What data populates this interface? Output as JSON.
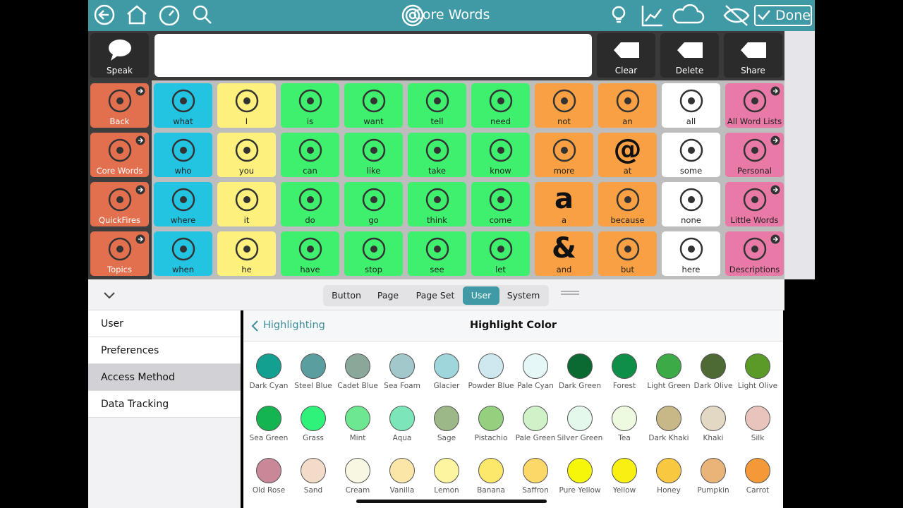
{
  "top_bar": {
    "title": "Core Words",
    "done": "Done"
  },
  "message_bar": {
    "speak": "Speak",
    "buttons": [
      "Clear",
      "Delete",
      "Share"
    ]
  },
  "grid": {
    "rows": [
      [
        {
          "label": "Back",
          "color": "#e2704f"
        },
        {
          "label": "what",
          "color": "#22c4e2"
        },
        {
          "label": "I",
          "color": "#fdf07c"
        },
        {
          "label": "is",
          "color": "#3ff06f"
        },
        {
          "label": "want",
          "color": "#3ff06f"
        },
        {
          "label": "tell",
          "color": "#3ff06f"
        },
        {
          "label": "need",
          "color": "#3ff06f"
        },
        {
          "label": "not",
          "color": "#f8a043"
        },
        {
          "label": "an",
          "color": "#f8a043"
        },
        {
          "label": "all",
          "color": "#ffffff"
        },
        {
          "label": "All Word Lists",
          "color": "#e97aa8"
        }
      ],
      [
        {
          "label": "Core Words",
          "color": "#e2704f"
        },
        {
          "label": "who",
          "color": "#22c4e2"
        },
        {
          "label": "you",
          "color": "#fdf07c"
        },
        {
          "label": "can",
          "color": "#3ff06f"
        },
        {
          "label": "like",
          "color": "#3ff06f"
        },
        {
          "label": "take",
          "color": "#3ff06f"
        },
        {
          "label": "know",
          "color": "#3ff06f"
        },
        {
          "label": "more",
          "color": "#f8a043"
        },
        {
          "label": "at",
          "color": "#f8a043",
          "glyph": "@"
        },
        {
          "label": "some",
          "color": "#ffffff"
        },
        {
          "label": "Personal",
          "color": "#e97aa8"
        }
      ],
      [
        {
          "label": "QuickFires",
          "color": "#e2704f"
        },
        {
          "label": "where",
          "color": "#22c4e2"
        },
        {
          "label": "it",
          "color": "#fdf07c"
        },
        {
          "label": "do",
          "color": "#3ff06f"
        },
        {
          "label": "go",
          "color": "#3ff06f"
        },
        {
          "label": "think",
          "color": "#3ff06f"
        },
        {
          "label": "come",
          "color": "#3ff06f"
        },
        {
          "label": "a",
          "color": "#f8a043",
          "glyph": "a"
        },
        {
          "label": "because",
          "color": "#f8a043"
        },
        {
          "label": "none",
          "color": "#ffffff"
        },
        {
          "label": "Little Words",
          "color": "#e97aa8"
        }
      ],
      [
        {
          "label": "Topics",
          "color": "#e2704f"
        },
        {
          "label": "when",
          "color": "#22c4e2"
        },
        {
          "label": "he",
          "color": "#fdf07c"
        },
        {
          "label": "have",
          "color": "#3ff06f"
        },
        {
          "label": "stop",
          "color": "#3ff06f"
        },
        {
          "label": "see",
          "color": "#3ff06f"
        },
        {
          "label": "let",
          "color": "#3ff06f"
        },
        {
          "label": "and",
          "color": "#f8a043",
          "glyph": "&"
        },
        {
          "label": "but",
          "color": "#f8a043"
        },
        {
          "label": "here",
          "color": "#ffffff"
        },
        {
          "label": "Descriptions",
          "color": "#e97aa8"
        }
      ]
    ]
  },
  "editor_tabs": [
    "Button",
    "Page",
    "Page Set",
    "User",
    "System"
  ],
  "sidebar": [
    "User",
    "Preferences",
    "Access Method",
    "Data Tracking"
  ],
  "color_panel": {
    "back": "Highlighting",
    "title": "Highlight Color",
    "colors": [
      {
        "name": "Dark Cyan",
        "color": "#13a090"
      },
      {
        "name": "Steel Blue",
        "color": "#5b9ea0"
      },
      {
        "name": "Cadet Blue",
        "color": "#8aa89a"
      },
      {
        "name": "Sea Foam",
        "color": "#a3c8cc"
      },
      {
        "name": "Glacier",
        "color": "#9ed6dc"
      },
      {
        "name": "Powder Blue",
        "color": "#cfe8f0"
      },
      {
        "name": "Pale Cyan",
        "color": "#e6f7f7"
      },
      {
        "name": "Dark Green",
        "color": "#0a6a32"
      },
      {
        "name": "Forest",
        "color": "#0e8f48"
      },
      {
        "name": "Light Green",
        "color": "#3daa48"
      },
      {
        "name": "Dark Olive",
        "color": "#4d6a34"
      },
      {
        "name": "Light Olive",
        "color": "#5a9a28"
      },
      {
        "name": "Sea Green",
        "color": "#14b450"
      },
      {
        "name": "Grass",
        "color": "#2ef27a"
      },
      {
        "name": "Mint",
        "color": "#6ee890"
      },
      {
        "name": "Aqua",
        "color": "#7de6b8"
      },
      {
        "name": "Sage",
        "color": "#9db888"
      },
      {
        "name": "Pistachio",
        "color": "#94d07e"
      },
      {
        "name": "Pale Green",
        "color": "#d0f2c8"
      },
      {
        "name": "Silver Green",
        "color": "#e4f8ec"
      },
      {
        "name": "Tea",
        "color": "#eefae0"
      },
      {
        "name": "Dark Khaki",
        "color": "#c8b888"
      },
      {
        "name": "Khaki",
        "color": "#e2d8c4"
      },
      {
        "name": "Silk",
        "color": "#e8c4bc"
      },
      {
        "name": "Old Rose",
        "color": "#c88898"
      },
      {
        "name": "Sand",
        "color": "#f2dcc8"
      },
      {
        "name": "Cream",
        "color": "#f8f8e2"
      },
      {
        "name": "Vanilla",
        "color": "#fbe6a8"
      },
      {
        "name": "Lemon",
        "color": "#fdf5a0"
      },
      {
        "name": "Banana",
        "color": "#fce86a"
      },
      {
        "name": "Saffron",
        "color": "#fcd868"
      },
      {
        "name": "Pure Yellow",
        "color": "#f6f60a"
      },
      {
        "name": "Yellow",
        "color": "#f8f010"
      },
      {
        "name": "Honey",
        "color": "#f8c840"
      },
      {
        "name": "Pumpkin",
        "color": "#e8b478"
      },
      {
        "name": "Carrot",
        "color": "#f49838"
      }
    ]
  }
}
